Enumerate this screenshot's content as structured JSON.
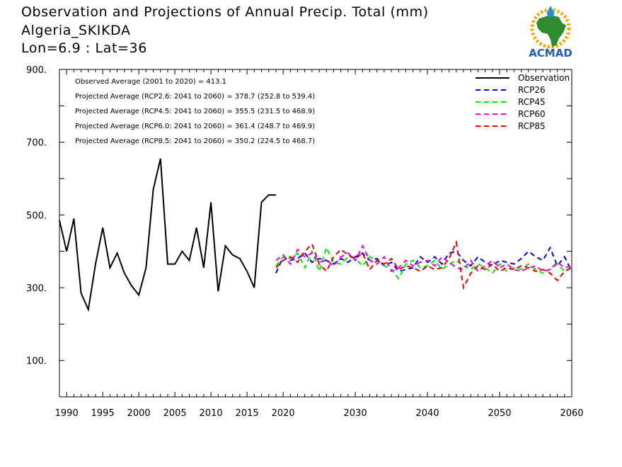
{
  "header": {
    "title": "Observation and Projections of Annual Precip. Total (mm)",
    "location": "Algeria_SKIKDA",
    "coords": "Lon=6.9 : Lat=36"
  },
  "logo": {
    "text": "ACMAD",
    "icon": "africa-map-sun-drop-icon"
  },
  "colors": {
    "Observation": "#000000",
    "RCP26": "#0000ee",
    "RCP45": "#00ee00",
    "RCP60": "#ee00ee",
    "RCP85": "#ee0000",
    "logo_text": "#1f5fb4",
    "logo_map": "#2e8b2e",
    "logo_sun": "#f2a900"
  },
  "chart_data": {
    "type": "line",
    "xlim": [
      1989,
      2060
    ],
    "ylim": [
      0,
      900
    ],
    "xticks": [
      1990,
      1995,
      2000,
      2005,
      2010,
      2015,
      2020,
      2030,
      2040,
      2050,
      2060
    ],
    "yticks": [
      100,
      300,
      500,
      700,
      900
    ],
    "ytick_labels": [
      "100.",
      "300.",
      "500.",
      "700.",
      "900."
    ],
    "grid": false,
    "legend_position": "top-right",
    "annotations": [
      "Observed Average (2001 to 2020) = 413.1",
      "Projected Average (RCP2.6: 2041 to 2060) = 378.7 (252.8 to 539.4)",
      "Projected Average (RCP4.5: 2041 to 2060) = 355.5 (231.5 to 468.9)",
      "Projected Average (RCP6.0: 2041 to 2060) = 361.4 (248.7 to 469.9)",
      "Projected Average (RCP8.5: 2041 to 2060) = 350.2 (224.5 to 468.7)"
    ],
    "series": [
      {
        "name": "Observation",
        "style": "solid",
        "x": [
          1989,
          1990,
          1991,
          1992,
          1993,
          1994,
          1995,
          1996,
          1997,
          1998,
          1999,
          2000,
          2001,
          2002,
          2003,
          2004,
          2005,
          2006,
          2007,
          2008,
          2009,
          2010,
          2011,
          2012,
          2013,
          2014,
          2015,
          2016,
          2017,
          2018,
          2019
        ],
        "values": [
          485,
          400,
          490,
          285,
          240,
          365,
          465,
          355,
          395,
          340,
          305,
          280,
          355,
          570,
          655,
          365,
          365,
          400,
          375,
          465,
          355,
          535,
          290,
          415,
          390,
          380,
          345,
          300,
          535,
          555,
          555
        ]
      },
      {
        "name": "RCP26",
        "style": "dashed",
        "x": [
          2019,
          2020,
          2021,
          2022,
          2023,
          2024,
          2025,
          2026,
          2027,
          2028,
          2029,
          2030,
          2031,
          2032,
          2033,
          2034,
          2035,
          2036,
          2037,
          2038,
          2039,
          2040,
          2041,
          2042,
          2043,
          2044,
          2045,
          2046,
          2047,
          2048,
          2049,
          2050,
          2051,
          2052,
          2053,
          2054,
          2055,
          2056,
          2057,
          2058,
          2059,
          2060
        ],
        "values": [
          340,
          385,
          375,
          380,
          395,
          370,
          380,
          375,
          365,
          380,
          370,
          385,
          395,
          375,
          380,
          360,
          370,
          345,
          350,
          355,
          385,
          370,
          385,
          365,
          395,
          400,
          375,
          360,
          385,
          370,
          360,
          375,
          370,
          365,
          380,
          400,
          385,
          375,
          410,
          360,
          385,
          345
        ]
      },
      {
        "name": "RCP45",
        "style": "dashed",
        "x": [
          2019,
          2020,
          2021,
          2022,
          2023,
          2024,
          2025,
          2026,
          2027,
          2028,
          2029,
          2030,
          2031,
          2032,
          2033,
          2034,
          2035,
          2036,
          2037,
          2038,
          2039,
          2040,
          2041,
          2042,
          2043,
          2044,
          2045,
          2046,
          2047,
          2048,
          2049,
          2050,
          2051,
          2052,
          2053,
          2054,
          2055,
          2056,
          2057,
          2058,
          2059,
          2060
        ],
        "values": [
          360,
          385,
          380,
          395,
          355,
          400,
          345,
          410,
          370,
          365,
          385,
          380,
          360,
          385,
          375,
          360,
          350,
          325,
          365,
          375,
          355,
          360,
          375,
          350,
          365,
          375,
          360,
          350,
          365,
          355,
          340,
          365,
          345,
          355,
          350,
          365,
          350,
          340,
          350,
          365,
          345,
          355
        ]
      },
      {
        "name": "RCP60",
        "style": "dashed",
        "x": [
          2019,
          2020,
          2021,
          2022,
          2023,
          2024,
          2025,
          2026,
          2027,
          2028,
          2029,
          2030,
          2031,
          2032,
          2033,
          2034,
          2035,
          2036,
          2037,
          2038,
          2039,
          2040,
          2041,
          2042,
          2043,
          2044,
          2045,
          2046,
          2047,
          2048,
          2049,
          2050,
          2051,
          2052,
          2053,
          2054,
          2055,
          2056,
          2057,
          2058,
          2059,
          2060
        ],
        "values": [
          375,
          390,
          365,
          405,
          385,
          395,
          370,
          375,
          360,
          385,
          395,
          375,
          415,
          375,
          365,
          385,
          345,
          355,
          375,
          360,
          370,
          375,
          360,
          385,
          370,
          355,
          350,
          375,
          345,
          360,
          375,
          355,
          365,
          350,
          345,
          355,
          360,
          345,
          350,
          370,
          355,
          360
        ]
      },
      {
        "name": "RCP85",
        "style": "dashed",
        "x": [
          2019,
          2020,
          2021,
          2022,
          2023,
          2024,
          2025,
          2026,
          2027,
          2028,
          2029,
          2030,
          2031,
          2032,
          2033,
          2034,
          2035,
          2036,
          2037,
          2038,
          2039,
          2040,
          2041,
          2042,
          2043,
          2044,
          2045,
          2046,
          2047,
          2048,
          2049,
          2050,
          2051,
          2052,
          2053,
          2054,
          2055,
          2056,
          2057,
          2058,
          2059,
          2060
        ],
        "values": [
          355,
          375,
          385,
          370,
          400,
          420,
          365,
          345,
          385,
          405,
          390,
          380,
          395,
          350,
          375,
          365,
          380,
          350,
          360,
          355,
          345,
          360,
          350,
          355,
          380,
          425,
          300,
          340,
          360,
          350,
          365,
          345,
          355,
          350,
          360,
          355,
          345,
          350,
          340,
          320,
          345,
          355
        ]
      }
    ]
  }
}
